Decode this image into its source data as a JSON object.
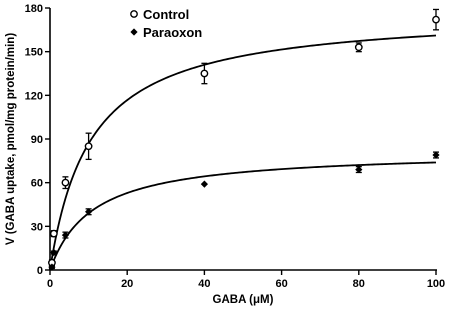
{
  "chart_data": {
    "type": "scatter",
    "xlabel": "GABA (μM)",
    "ylabel": "V (GABA uptake, pmol/mg protein/min)",
    "xlim": [
      0,
      100
    ],
    "ylim": [
      0,
      180
    ],
    "x_ticks": [
      0,
      20,
      40,
      60,
      80,
      100
    ],
    "y_ticks": [
      0,
      30,
      60,
      90,
      120,
      150,
      180
    ],
    "grid": false,
    "legend": "top-left",
    "series": [
      {
        "name": "Control",
        "marker": "open-circle",
        "points": [
          {
            "x": 0.5,
            "y": 5,
            "err": 2
          },
          {
            "x": 1,
            "y": 25,
            "err": 2
          },
          {
            "x": 4,
            "y": 60,
            "err": 4
          },
          {
            "x": 10,
            "y": 85,
            "err": 9
          },
          {
            "x": 40,
            "y": 135,
            "err": 7
          },
          {
            "x": 80,
            "y": 153,
            "err": 3
          },
          {
            "x": 100,
            "y": 172,
            "err": 7
          }
        ],
        "fit": {
          "model": "michaelis-menten",
          "vmax": 178,
          "km": 10.5
        }
      },
      {
        "name": "Paraoxon",
        "marker": "filled-diamond",
        "points": [
          {
            "x": 0.5,
            "y": 2,
            "err": 1
          },
          {
            "x": 1,
            "y": 12,
            "err": 1
          },
          {
            "x": 4,
            "y": 24,
            "err": 2
          },
          {
            "x": 10,
            "y": 40,
            "err": 2
          },
          {
            "x": 40,
            "y": 59,
            "err": 0
          },
          {
            "x": 80,
            "y": 69,
            "err": 2
          },
          {
            "x": 100,
            "y": 79,
            "err": 2
          }
        ],
        "fit": {
          "model": "michaelis-menten",
          "vmax": 82,
          "km": 11
        }
      }
    ]
  }
}
